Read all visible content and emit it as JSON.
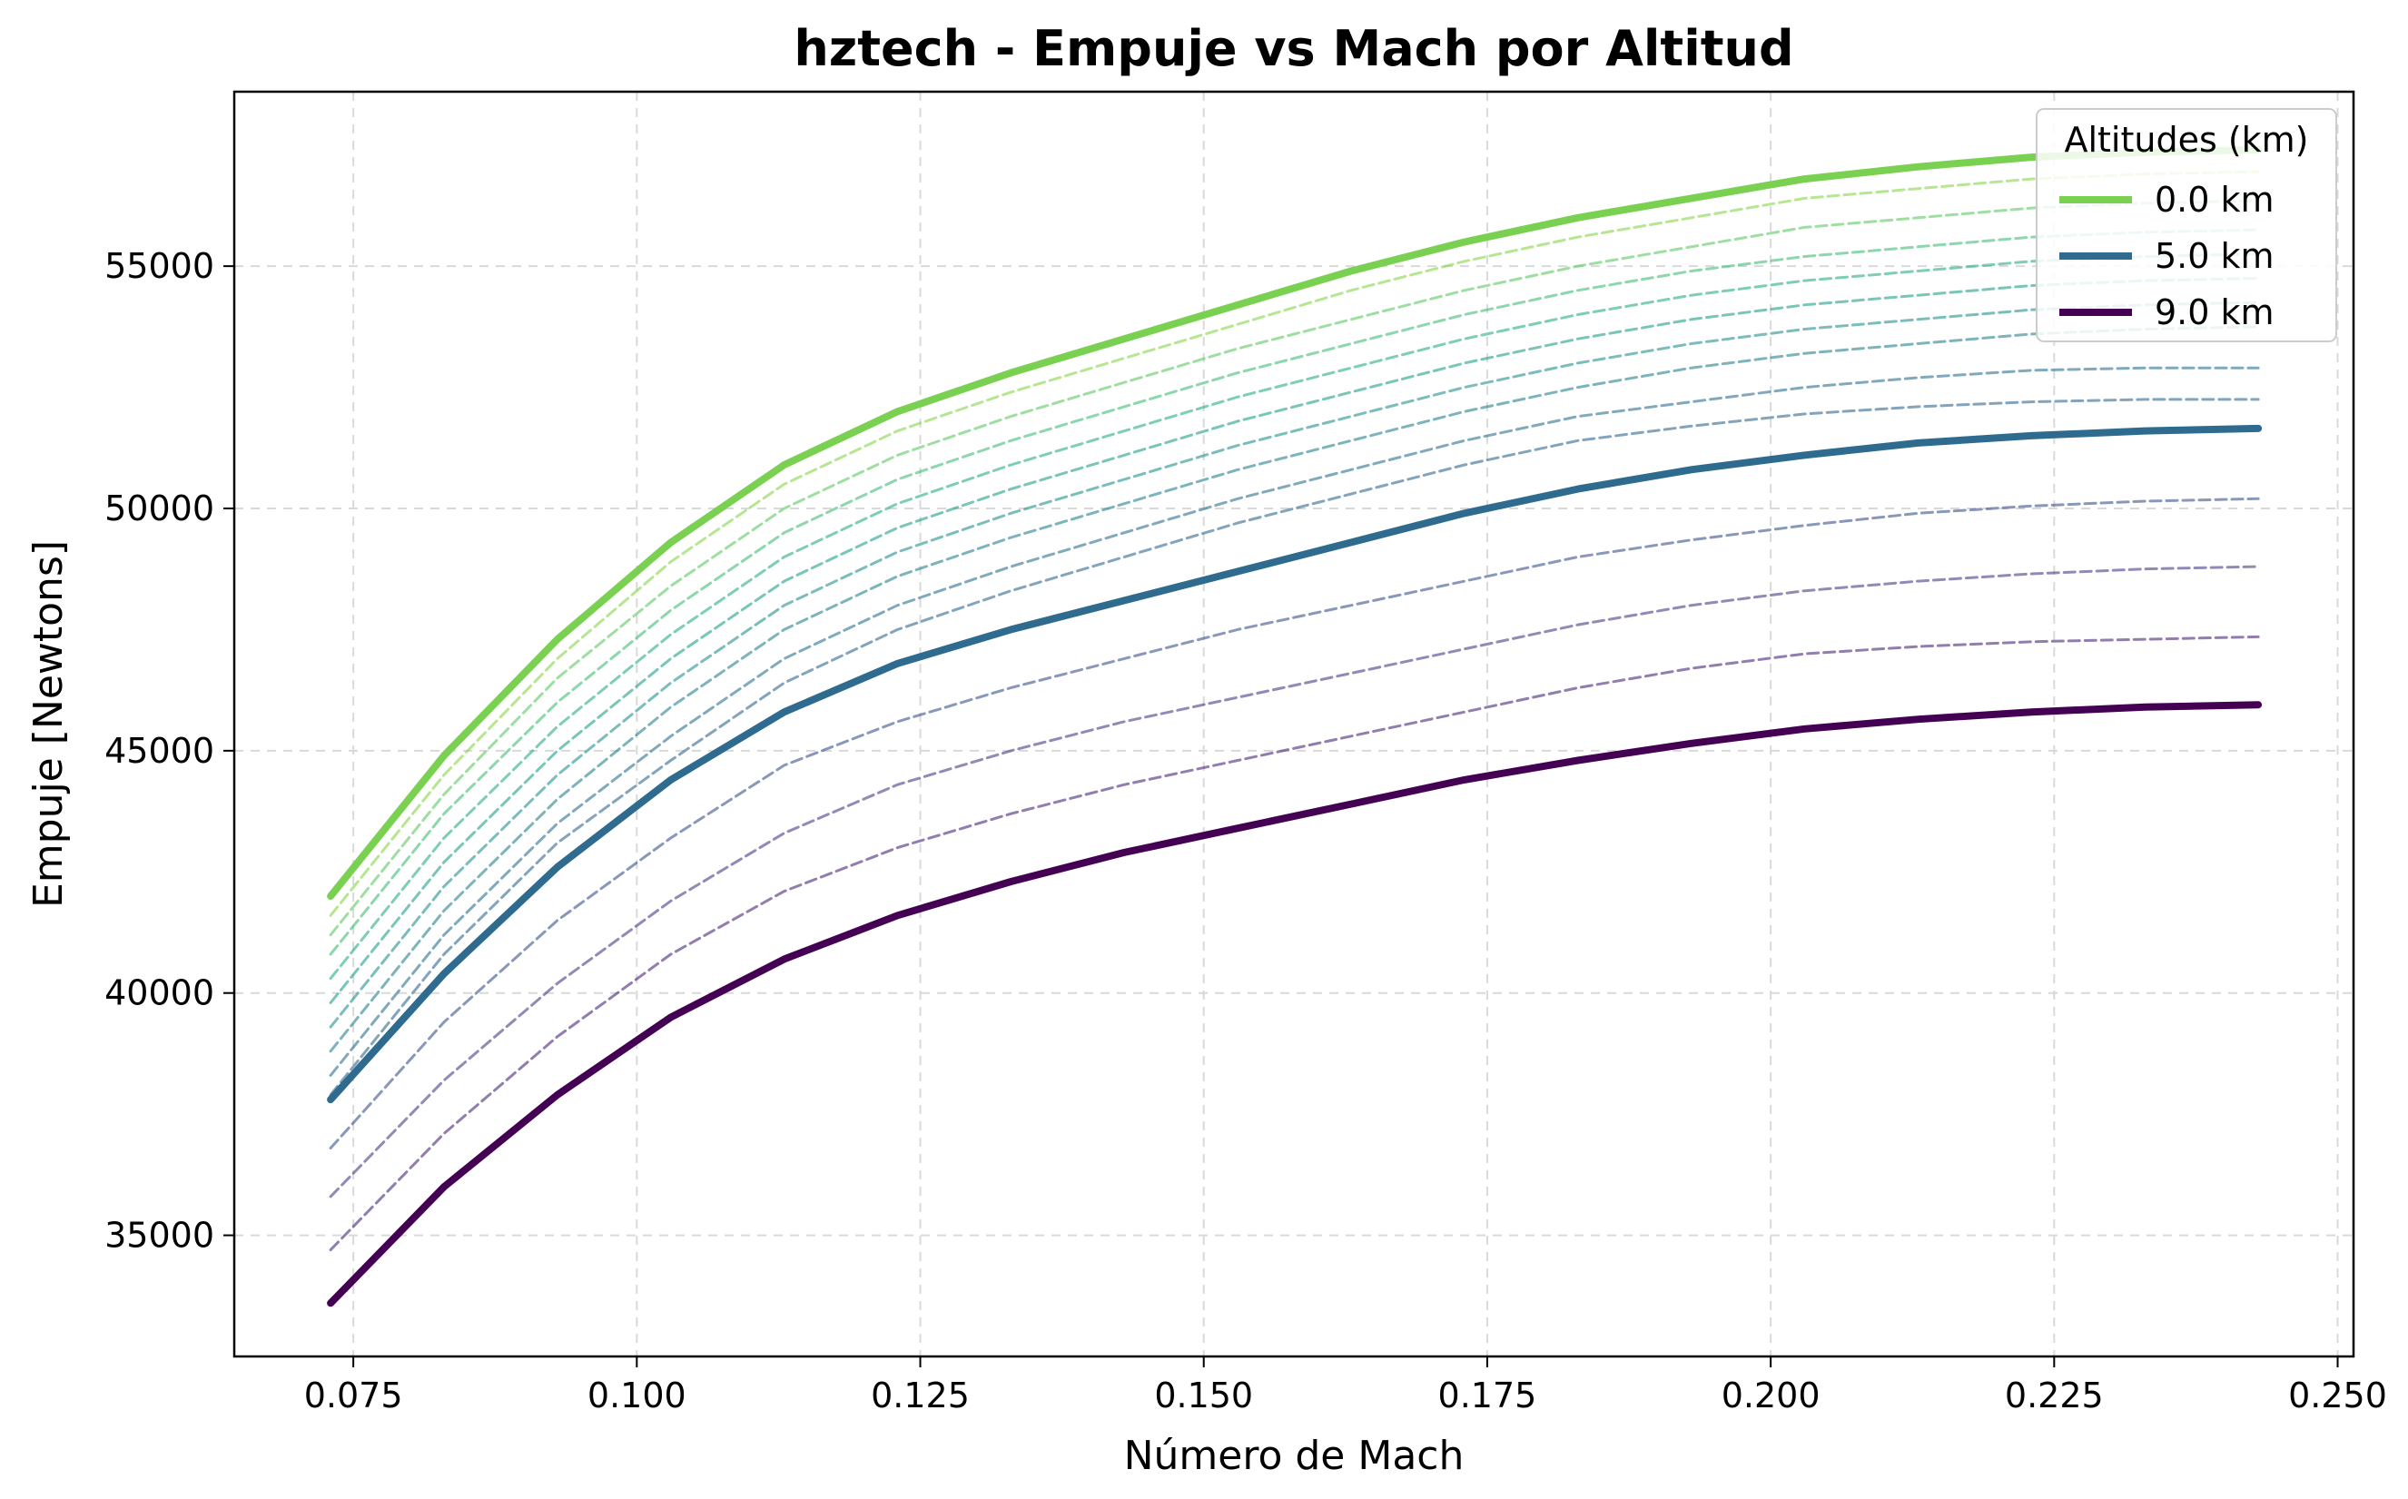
{
  "chart_data": {
    "type": "line",
    "title": "hztech - Empuje vs Mach por Altitud",
    "xlabel": "Número de Mach",
    "ylabel": "Empuje [Newtons]",
    "xlim": [
      0.0645,
      0.2514
    ],
    "ylim": [
      32500,
      58600
    ],
    "xticks": [
      0.075,
      0.1,
      0.125,
      0.15,
      0.175,
      0.2,
      0.225,
      0.25
    ],
    "xtick_labels": [
      "0.075",
      "0.100",
      "0.125",
      "0.150",
      "0.175",
      "0.200",
      "0.225",
      "0.250"
    ],
    "yticks": [
      35000,
      40000,
      45000,
      50000,
      55000
    ],
    "ytick_labels": [
      "35000",
      "40000",
      "45000",
      "50000",
      "55000"
    ],
    "grid": true,
    "legend_title": "Altitudes (km)",
    "legend_position": "top-right",
    "x": [
      0.073,
      0.083,
      0.093,
      0.103,
      0.113,
      0.123,
      0.133,
      0.143,
      0.153,
      0.163,
      0.173,
      0.183,
      0.193,
      0.203,
      0.213,
      0.223,
      0.233,
      0.243
    ],
    "series": [
      {
        "name": "0.0 km",
        "style": "solid",
        "color": "#7ad151",
        "values": [
          42000,
          44900,
          47300,
          49300,
          50900,
          52000,
          52800,
          53500,
          54200,
          54900,
          55500,
          56000,
          56400,
          56800,
          57050,
          57250,
          57350,
          57400
        ]
      },
      {
        "style": "dashed",
        "color": "#86d549",
        "values": [
          41600,
          44500,
          46900,
          48900,
          50500,
          51600,
          52400,
          53100,
          53800,
          54500,
          55100,
          55600,
          56000,
          56400,
          56600,
          56800,
          56900,
          56950
        ]
      },
      {
        "style": "dashed",
        "color": "#5ec962",
        "values": [
          41200,
          44100,
          46500,
          48400,
          50000,
          51100,
          51900,
          52600,
          53300,
          53900,
          54500,
          55000,
          55400,
          55800,
          56000,
          56200,
          56300,
          56350
        ]
      },
      {
        "style": "dashed",
        "color": "#3fbc73",
        "values": [
          40800,
          43700,
          46000,
          47900,
          49500,
          50600,
          51400,
          52100,
          52800,
          53400,
          54000,
          54500,
          54900,
          55200,
          55400,
          55600,
          55700,
          55750
        ]
      },
      {
        "style": "dashed",
        "color": "#28ae80",
        "values": [
          40300,
          43200,
          45500,
          47400,
          49000,
          50100,
          50900,
          51600,
          52300,
          52900,
          53500,
          54000,
          54400,
          54700,
          54900,
          55100,
          55200,
          55250
        ]
      },
      {
        "style": "dashed",
        "color": "#1fa088",
        "values": [
          39800,
          42700,
          45000,
          46900,
          48500,
          49600,
          50400,
          51100,
          51800,
          52400,
          53000,
          53500,
          53900,
          54200,
          54400,
          54600,
          54700,
          54750
        ]
      },
      {
        "style": "dashed",
        "color": "#21918c",
        "values": [
          39300,
          42200,
          44500,
          46400,
          48000,
          49100,
          49900,
          50600,
          51300,
          51900,
          52500,
          53000,
          53400,
          53700,
          53900,
          54100,
          54200,
          54250
        ]
      },
      {
        "style": "dashed",
        "color": "#26828e",
        "values": [
          38800,
          41700,
          44000,
          45900,
          47500,
          48600,
          49400,
          50100,
          50800,
          51400,
          52000,
          52500,
          52900,
          53200,
          53400,
          53600,
          53700,
          53750
        ]
      },
      {
        "style": "dashed",
        "color": "#2c728e",
        "values": [
          38300,
          41200,
          43500,
          45300,
          46900,
          48000,
          48800,
          49500,
          50200,
          50800,
          51400,
          51900,
          52200,
          52500,
          52700,
          52850,
          52900,
          52900
        ]
      },
      {
        "style": "dashed",
        "color": "#31688e",
        "values": [
          37900,
          40800,
          43100,
          44800,
          46400,
          47500,
          48300,
          49000,
          49700,
          50300,
          50900,
          51400,
          51700,
          51950,
          52100,
          52200,
          52250,
          52250
        ]
      },
      {
        "name": "5.0 km",
        "style": "solid",
        "color": "#2f6b8e",
        "values": [
          37800,
          40400,
          42600,
          44400,
          45800,
          46800,
          47500,
          48100,
          48700,
          49300,
          49900,
          50400,
          50800,
          51100,
          51350,
          51500,
          51600,
          51650
        ]
      },
      {
        "style": "dashed",
        "color": "#3b528b",
        "values": [
          36800,
          39400,
          41500,
          43200,
          44700,
          45600,
          46300,
          46900,
          47500,
          48000,
          48500,
          49000,
          49350,
          49650,
          49900,
          50050,
          50150,
          50200
        ]
      },
      {
        "style": "dashed",
        "color": "#433e85",
        "values": [
          35800,
          38200,
          40200,
          41900,
          43300,
          44300,
          45000,
          45600,
          46100,
          46600,
          47100,
          47600,
          48000,
          48300,
          48500,
          48650,
          48750,
          48800
        ]
      },
      {
        "style": "dashed",
        "color": "#482878",
        "values": [
          34700,
          37100,
          39100,
          40800,
          42100,
          43000,
          43700,
          44300,
          44800,
          45300,
          45800,
          46300,
          46700,
          47000,
          47150,
          47250,
          47300,
          47350
        ]
      },
      {
        "name": "9.0 km",
        "style": "solid",
        "color": "#440154",
        "values": [
          33600,
          36000,
          37900,
          39500,
          40700,
          41600,
          42300,
          42900,
          43400,
          43900,
          44400,
          44800,
          45150,
          45450,
          45650,
          45800,
          45900,
          45950
        ]
      }
    ]
  }
}
